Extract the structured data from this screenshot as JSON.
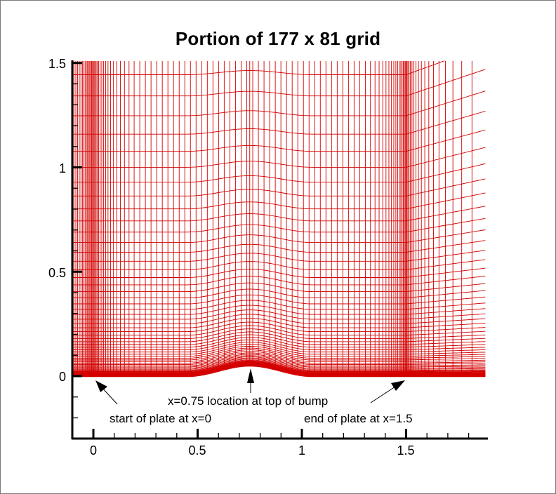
{
  "chart_data": {
    "type": "line",
    "title": "Portion of 177 x 81 grid",
    "xlabel": "",
    "ylabel": "",
    "xlim": [
      -0.1,
      1.89
    ],
    "ylim": [
      -0.3,
      1.5
    ],
    "x_ticks": [
      0,
      0.5,
      1,
      1.5
    ],
    "x_tick_labels": [
      "0",
      "0.5",
      "1",
      "1.5"
    ],
    "y_ticks": [
      0,
      0.5,
      1,
      1.5
    ],
    "y_tick_labels": [
      "0",
      "0.5",
      "1",
      "1.5"
    ],
    "grid": false,
    "series_color": "#d40000",
    "grid_mesh": {
      "total_i": 177,
      "total_j": 81,
      "description": "Structured computational mesh over a flat plate with a bump; vertical grid lines clustered at leading edge x=0 and trailing edge x=1.5; horizontal lines clustered toward the wall y=0.",
      "wall": {
        "flat_before": [
          -0.1,
          0.45
        ],
        "bump": {
          "x_start": 0.45,
          "x_peak": 0.75,
          "x_end": 1.05,
          "peak_height": 0.05
        },
        "flat_after": [
          1.05,
          1.89
        ]
      },
      "cluster_points_x": [
        0.0,
        1.5
      ]
    },
    "annotations": [
      {
        "text": "start of plate at x=0",
        "arrow_to": [
          0.0,
          -0.02
        ],
        "text_at": [
          0.08,
          -0.2
        ]
      },
      {
        "text": "x=0.75 location at top of bump",
        "arrow_to": [
          0.75,
          0.03
        ],
        "text_at": [
          0.75,
          -0.12
        ]
      },
      {
        "text": "end of plate at x=1.5",
        "arrow_to": [
          1.5,
          -0.02
        ],
        "text_at": [
          1.36,
          -0.2
        ]
      }
    ]
  },
  "title": "Portion of 177 x 81 grid",
  "axes": {
    "x_labels": [
      "0",
      "0.5",
      "1",
      "1.5"
    ],
    "y_labels": [
      "0",
      "0.5",
      "1",
      "1.5"
    ]
  },
  "annotations": {
    "start": "start of plate at x=0",
    "bump": "x=0.75 location at top of bump",
    "end": "end of plate at x=1.5"
  },
  "colors": {
    "grid": "#d40000",
    "axis": "#000000",
    "frame": "#7a7a7a"
  }
}
